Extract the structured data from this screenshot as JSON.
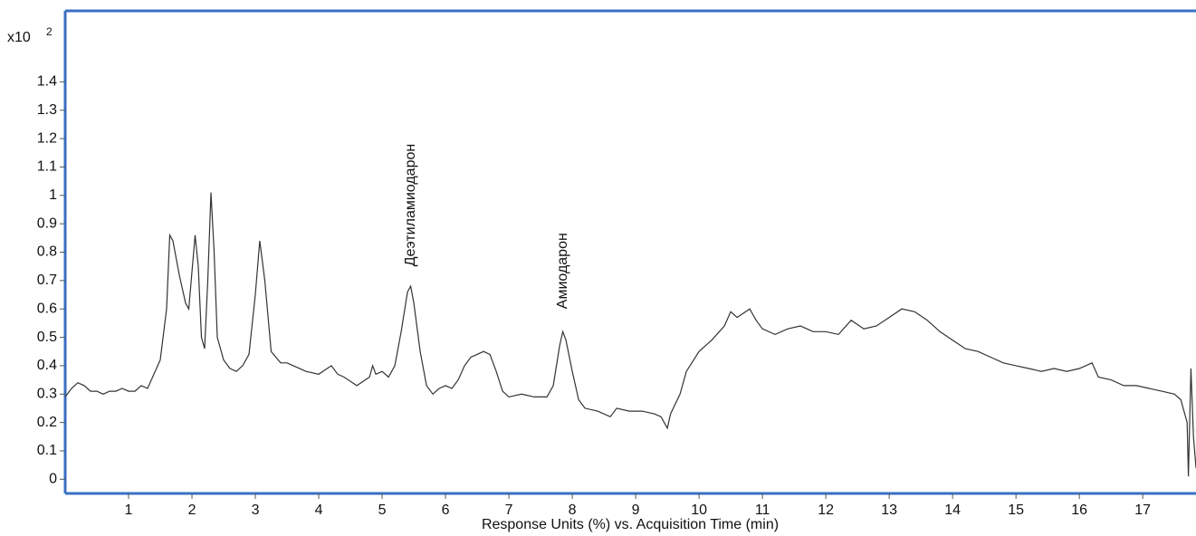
{
  "chart_data": {
    "type": "line",
    "x_label": "Response Units (%) vs. Acquisition Time (min)",
    "y_scale_label": "x10",
    "y_scale_exponent": "2",
    "xlim": [
      0,
      17.84
    ],
    "ylim": [
      -0.05,
      1.65
    ],
    "xticks": [
      1,
      2,
      3,
      4,
      5,
      6,
      7,
      8,
      9,
      10,
      11,
      12,
      13,
      14,
      15,
      16,
      17
    ],
    "yticks": [
      0,
      0.1,
      0.2,
      0.3,
      0.4,
      0.5,
      0.6,
      0.7,
      0.8,
      0.9,
      1,
      1.1,
      1.2,
      1.3,
      1.4
    ],
    "frame_color": "#3a6fc4",
    "annotations": [
      {
        "text": "Деэтиламиодарон",
        "x": 5.45,
        "y": 0.75
      },
      {
        "text": "Амиодарон",
        "x": 7.85,
        "y": 0.6
      }
    ],
    "series": [
      {
        "color": "#333333",
        "x": [
          0.0,
          0.1,
          0.2,
          0.3,
          0.4,
          0.5,
          0.6,
          0.7,
          0.8,
          0.9,
          1.0,
          1.1,
          1.2,
          1.3,
          1.4,
          1.5,
          1.6,
          1.65,
          1.7,
          1.8,
          1.9,
          1.95,
          2.05,
          2.1,
          2.15,
          2.2,
          2.25,
          2.3,
          2.35,
          2.4,
          2.5,
          2.6,
          2.7,
          2.8,
          2.9,
          3.0,
          3.07,
          3.15,
          3.25,
          3.4,
          3.5,
          3.6,
          3.8,
          4.0,
          4.2,
          4.3,
          4.4,
          4.6,
          4.8,
          4.85,
          4.9,
          5.0,
          5.1,
          5.2,
          5.3,
          5.4,
          5.45,
          5.5,
          5.6,
          5.7,
          5.8,
          5.9,
          6.0,
          6.1,
          6.2,
          6.3,
          6.4,
          6.5,
          6.6,
          6.7,
          6.8,
          6.9,
          7.0,
          7.2,
          7.4,
          7.6,
          7.7,
          7.8,
          7.85,
          7.9,
          8.0,
          8.1,
          8.2,
          8.4,
          8.6,
          8.7,
          8.9,
          9.1,
          9.3,
          9.4,
          9.5,
          9.55,
          9.7,
          9.8,
          10.0,
          10.2,
          10.4,
          10.5,
          10.6,
          10.8,
          10.9,
          11.0,
          11.2,
          11.4,
          11.6,
          11.8,
          12.0,
          12.2,
          12.4,
          12.6,
          12.8,
          13.0,
          13.2,
          13.4,
          13.6,
          13.8,
          14.0,
          14.2,
          14.4,
          14.6,
          14.8,
          15.0,
          15.2,
          15.4,
          15.6,
          15.8,
          16.0,
          16.2,
          16.3,
          16.5,
          16.7,
          16.9,
          17.1,
          17.3,
          17.5,
          17.6,
          17.7,
          17.72,
          17.76,
          17.8,
          17.84
        ],
        "values": [
          0.29,
          0.32,
          0.34,
          0.33,
          0.31,
          0.31,
          0.3,
          0.31,
          0.31,
          0.32,
          0.31,
          0.31,
          0.33,
          0.32,
          0.37,
          0.42,
          0.6,
          0.86,
          0.84,
          0.72,
          0.62,
          0.6,
          0.86,
          0.75,
          0.5,
          0.46,
          0.7,
          1.01,
          0.8,
          0.5,
          0.42,
          0.39,
          0.38,
          0.4,
          0.44,
          0.65,
          0.84,
          0.7,
          0.45,
          0.41,
          0.41,
          0.4,
          0.38,
          0.37,
          0.4,
          0.37,
          0.36,
          0.33,
          0.36,
          0.4,
          0.37,
          0.38,
          0.36,
          0.4,
          0.52,
          0.66,
          0.68,
          0.62,
          0.45,
          0.33,
          0.3,
          0.32,
          0.33,
          0.32,
          0.35,
          0.4,
          0.43,
          0.44,
          0.45,
          0.44,
          0.38,
          0.31,
          0.29,
          0.3,
          0.29,
          0.29,
          0.33,
          0.47,
          0.52,
          0.49,
          0.38,
          0.28,
          0.25,
          0.24,
          0.22,
          0.25,
          0.24,
          0.24,
          0.23,
          0.22,
          0.18,
          0.23,
          0.3,
          0.38,
          0.45,
          0.49,
          0.54,
          0.59,
          0.57,
          0.6,
          0.56,
          0.53,
          0.51,
          0.53,
          0.54,
          0.52,
          0.52,
          0.51,
          0.56,
          0.53,
          0.54,
          0.57,
          0.6,
          0.59,
          0.56,
          0.52,
          0.49,
          0.46,
          0.45,
          0.43,
          0.41,
          0.4,
          0.39,
          0.38,
          0.39,
          0.38,
          0.39,
          0.41,
          0.36,
          0.35,
          0.33,
          0.33,
          0.32,
          0.31,
          0.3,
          0.28,
          0.2,
          0.01,
          0.39,
          0.15,
          0.04
        ]
      }
    ]
  }
}
